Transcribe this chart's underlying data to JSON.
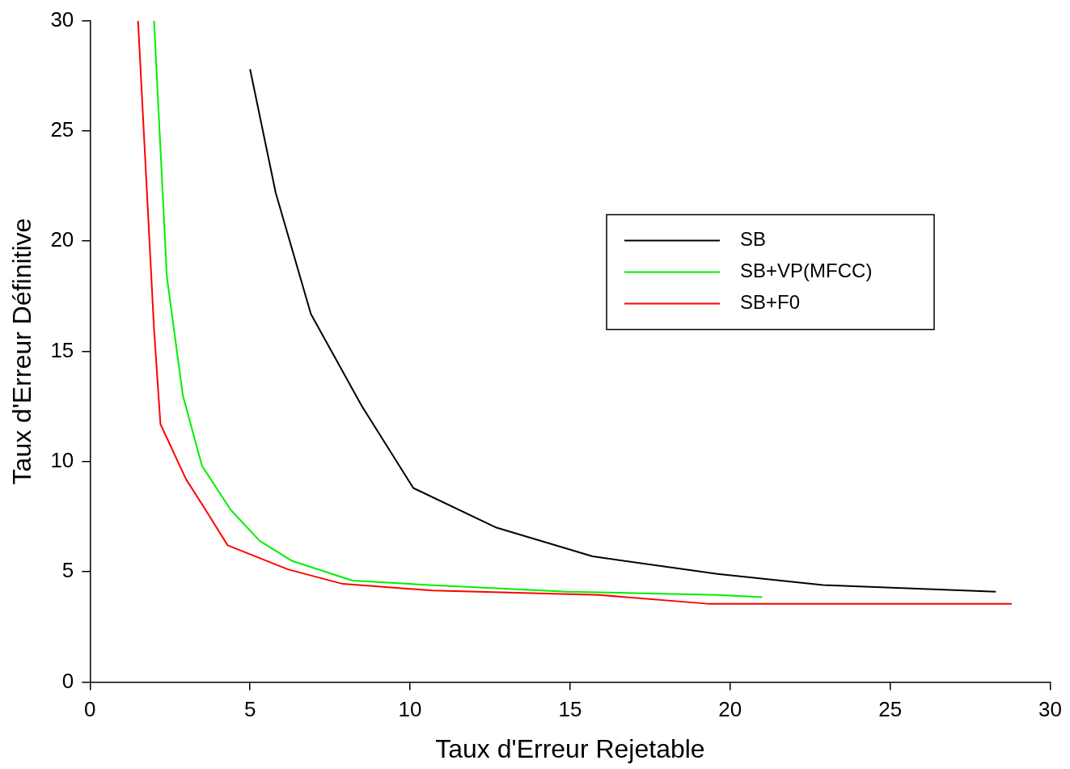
{
  "chart_data": {
    "type": "line",
    "xlabel": "Taux d'Erreur Rejetable",
    "ylabel": "Taux d'Erreur Définitive",
    "xlim": [
      0,
      30
    ],
    "xticks": [
      0,
      5,
      10,
      15,
      20,
      25,
      30
    ],
    "ylim": [
      0,
      30
    ],
    "yticks": [
      0,
      5,
      10,
      15,
      20,
      25,
      30
    ],
    "grid": false,
    "legend": "right",
    "marker": "none",
    "line_style": "solid",
    "series": [
      {
        "name": "SB",
        "color": "#000000",
        "x": [
          5.0,
          5.8,
          6.9,
          8.5,
          10.1,
          12.7,
          15.7,
          19.6,
          22.9,
          28.3
        ],
        "values": [
          27.8,
          22.2,
          16.7,
          12.5,
          8.8,
          7.0,
          5.7,
          4.9,
          4.4,
          4.1
        ]
      },
      {
        "name": "SB+VP(MFCC)",
        "color": "#00ee00",
        "x": [
          2.0,
          2.4,
          2.9,
          3.5,
          4.4,
          5.3,
          6.3,
          8.2,
          10.6,
          14.9,
          19.6,
          21.0
        ],
        "values": [
          30,
          18.4,
          13.0,
          9.8,
          7.8,
          6.4,
          5.5,
          4.6,
          4.4,
          4.1,
          3.95,
          3.85
        ]
      },
      {
        "name": "SB+F0",
        "color": "#ff0000",
        "x": [
          1.5,
          2.0,
          2.2,
          3.0,
          3.7,
          4.3,
          6.2,
          7.9,
          10.7,
          15.9,
          19.3,
          28.8
        ],
        "values": [
          30,
          16.0,
          11.7,
          9.2,
          7.6,
          6.2,
          5.1,
          4.45,
          4.15,
          3.95,
          3.55,
          3.55
        ]
      }
    ]
  }
}
